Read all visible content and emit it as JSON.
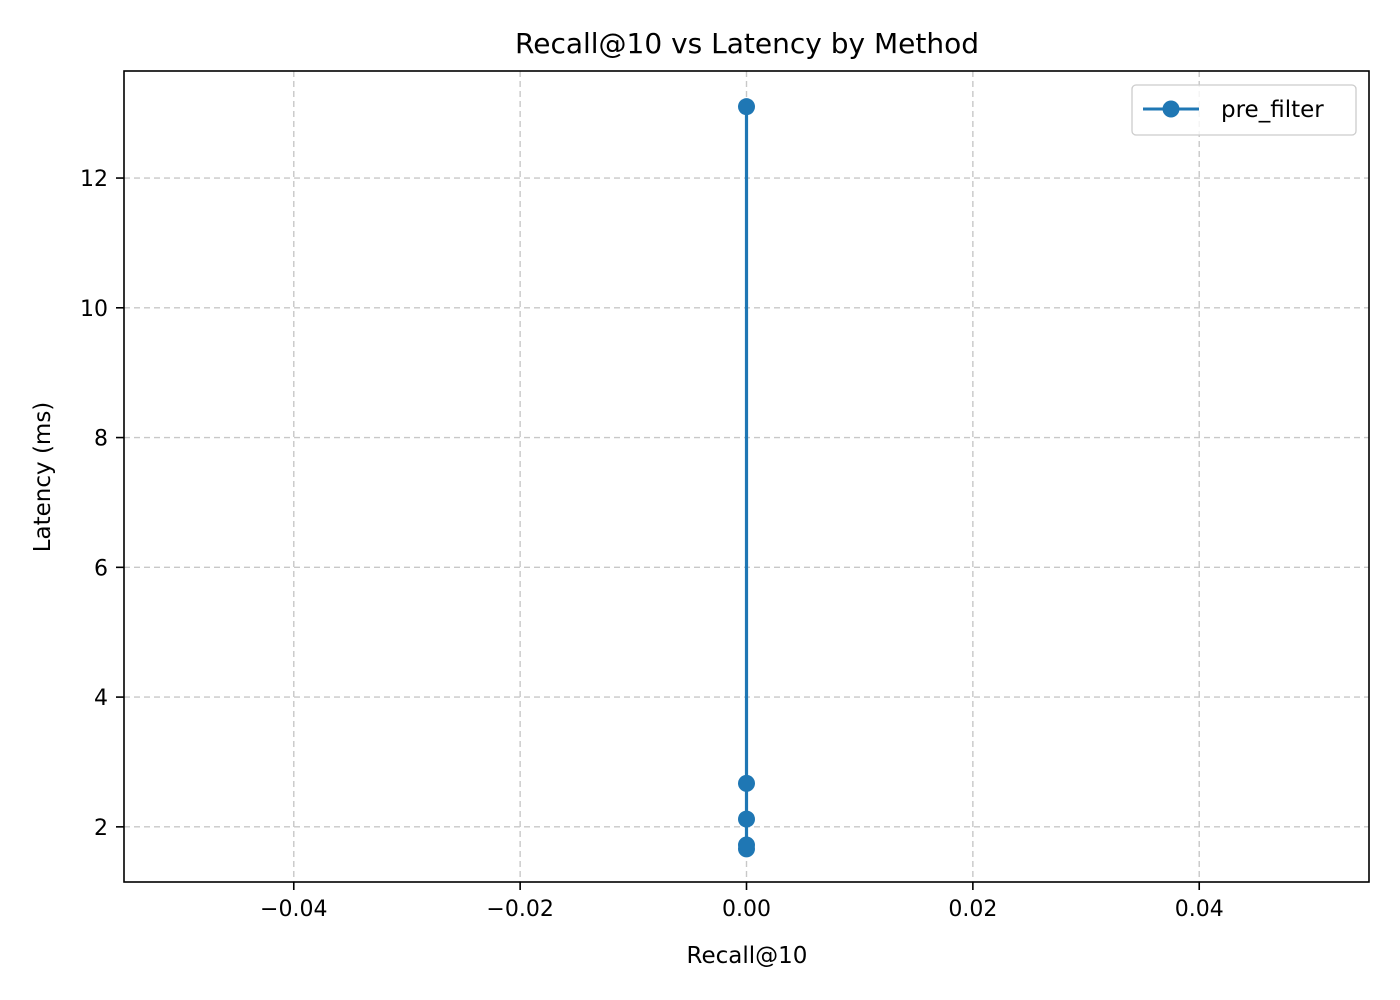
{
  "chart_data": {
    "type": "line",
    "title": "Recall@10 vs Latency by Method",
    "xlabel": "Recall@10",
    "ylabel": "Latency (ms)",
    "xlim": [
      -0.055,
      0.055
    ],
    "ylim": [
      1.15,
      13.65
    ],
    "xticks": [
      -0.04,
      -0.02,
      0.0,
      0.02,
      0.04
    ],
    "xtick_labels": [
      "−0.04",
      "−0.02",
      "0.00",
      "0.02",
      "0.04"
    ],
    "yticks": [
      2,
      4,
      6,
      8,
      10,
      12
    ],
    "ytick_labels": [
      "2",
      "4",
      "6",
      "8",
      "10",
      "12"
    ],
    "grid": true,
    "grid_style": "dashed",
    "legend_position": "top-right",
    "series": [
      {
        "name": "pre_filter",
        "color": "#1f77b4",
        "marker": "circle",
        "x": [
          0.0,
          0.0,
          0.0,
          0.0,
          0.0
        ],
        "y": [
          1.66,
          1.72,
          2.12,
          2.67,
          13.1
        ]
      }
    ]
  }
}
